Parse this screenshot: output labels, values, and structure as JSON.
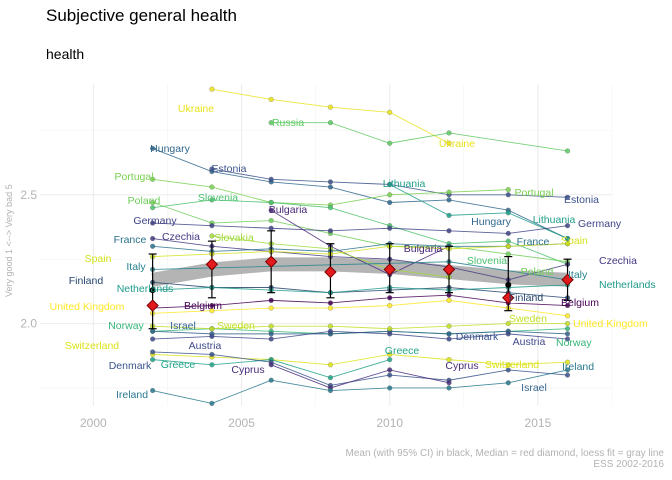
{
  "title": "Subjective general health",
  "subtitle": "health",
  "ylabel": "Very good 1 <--> Very bad 5",
  "caption_line1": "Mean (with 95% CI) in black, Median = red diamond, loess fit = gray line",
  "caption_line2": "ESS 2002-2016",
  "chart_data": {
    "type": "line",
    "title": "Subjective general health",
    "subtitle": "health",
    "xlabel": "",
    "ylabel": "Very good 1 <--> Very bad 5",
    "xlim": [
      1998.2,
      2017.5
    ],
    "ylim": [
      1.68,
      2.93
    ],
    "x_ticks": [
      2000,
      2005,
      2010,
      2015
    ],
    "y_ticks": [
      2.0,
      2.5
    ],
    "y_tick_labels": [
      "2.0",
      "2.5"
    ],
    "grid": true,
    "summary": {
      "years": [
        2002,
        2004,
        2006,
        2008,
        2010,
        2012,
        2014,
        2016
      ],
      "mean": [
        2.13,
        2.22,
        2.24,
        2.2,
        2.21,
        2.2,
        2.15,
        2.17
      ],
      "ci_low": [
        1.98,
        2.1,
        2.12,
        2.1,
        2.12,
        2.12,
        2.05,
        2.09
      ],
      "ci_high": [
        2.27,
        2.32,
        2.36,
        2.31,
        2.31,
        2.3,
        2.26,
        2.25
      ],
      "median": [
        2.07,
        2.23,
        2.24,
        2.2,
        2.21,
        2.21,
        2.1,
        2.17
      ],
      "loess": [
        2.17,
        2.21,
        2.23,
        2.23,
        2.22,
        2.2,
        2.18,
        2.17
      ]
    },
    "series": [
      {
        "name": "Ukraine",
        "color": "#e8e31b",
        "x": [
          2004,
          2006,
          2008,
          2010,
          2012
        ],
        "y": [
          2.91,
          2.87,
          2.84,
          2.82,
          2.7
        ]
      },
      {
        "name": "Russia",
        "color": "#5ec962",
        "x": [
          2006,
          2008,
          2010,
          2012,
          2016
        ],
        "y": [
          2.78,
          2.78,
          2.7,
          2.74,
          2.67
        ]
      },
      {
        "name": "Hungary",
        "color": "#31688e",
        "x": [
          2002,
          2004,
          2006,
          2008,
          2010,
          2012,
          2014,
          2016
        ],
        "y": [
          2.68,
          2.59,
          2.55,
          2.53,
          2.47,
          2.48,
          2.44,
          2.33
        ]
      },
      {
        "name": "Estonia",
        "color": "#3b528b",
        "x": [
          2004,
          2006,
          2008,
          2010,
          2012,
          2014,
          2016
        ],
        "y": [
          2.6,
          2.56,
          2.55,
          2.54,
          2.5,
          2.5,
          2.49
        ]
      },
      {
        "name": "Portugal",
        "color": "#7ad151",
        "x": [
          2002,
          2004,
          2006,
          2008,
          2010,
          2012,
          2014
        ],
        "y": [
          2.56,
          2.53,
          2.47,
          2.46,
          2.5,
          2.51,
          2.52
        ]
      },
      {
        "name": "Lithuania",
        "color": "#1f9e89",
        "x": [
          2010,
          2012,
          2014,
          2016
        ],
        "y": [
          2.54,
          2.42,
          2.43,
          2.33
        ]
      },
      {
        "name": "Slovenia",
        "color": "#4ac16d",
        "x": [
          2002,
          2004,
          2006,
          2008,
          2010,
          2012,
          2014,
          2016
        ],
        "y": [
          2.45,
          2.48,
          2.47,
          2.45,
          2.38,
          2.31,
          2.32,
          2.23
        ]
      },
      {
        "name": "Poland",
        "color": "#6ece58",
        "x": [
          2002,
          2004,
          2006,
          2008,
          2010,
          2012,
          2014,
          2016
        ],
        "y": [
          2.47,
          2.39,
          2.4,
          2.35,
          2.3,
          2.3,
          2.27,
          2.24
        ]
      },
      {
        "name": "Germany",
        "color": "#414487",
        "x": [
          2002,
          2004,
          2006,
          2008,
          2010,
          2012,
          2014,
          2016
        ],
        "y": [
          2.39,
          2.38,
          2.37,
          2.36,
          2.37,
          2.36,
          2.35,
          2.38
        ]
      },
      {
        "name": "Bulgaria",
        "color": "#482878",
        "x": [
          2006,
          2008,
          2010,
          2012
        ],
        "y": [
          2.44,
          2.3,
          2.19,
          2.3
        ]
      },
      {
        "name": "Czechia",
        "color": "#443983",
        "x": [
          2002,
          2004,
          2006,
          2008,
          2010,
          2012,
          2014,
          2016
        ],
        "y": [
          2.33,
          2.3,
          2.28,
          2.26,
          2.25,
          2.22,
          2.17,
          2.23
        ]
      },
      {
        "name": "Slovakia",
        "color": "#a0da39",
        "x": [
          2004,
          2006,
          2008,
          2010,
          2012
        ],
        "y": [
          2.34,
          2.31,
          2.29,
          2.21,
          2.18
        ]
      },
      {
        "name": "France",
        "color": "#2c728e",
        "x": [
          2002,
          2004,
          2006,
          2008,
          2010,
          2012,
          2014,
          2016
        ],
        "y": [
          2.3,
          2.28,
          2.29,
          2.28,
          2.31,
          2.3,
          2.3,
          2.31
        ]
      },
      {
        "name": "Spain",
        "color": "#d2e21b",
        "x": [
          2002,
          2004,
          2006,
          2008,
          2010,
          2012,
          2014,
          2016
        ],
        "y": [
          2.26,
          2.27,
          2.28,
          2.27,
          2.3,
          2.29,
          2.3,
          2.31
        ]
      },
      {
        "name": "Italy",
        "color": "#25848e",
        "x": [
          2002,
          2012,
          2016
        ],
        "y": [
          2.21,
          2.24,
          2.17
        ]
      },
      {
        "name": "Finland",
        "color": "#26456e",
        "x": [
          2002,
          2004,
          2006,
          2008,
          2010,
          2012,
          2014,
          2016
        ],
        "y": [
          2.16,
          2.14,
          2.14,
          2.12,
          2.13,
          2.14,
          2.12,
          2.1
        ]
      },
      {
        "name": "Netherlands",
        "color": "#1e9b8a",
        "x": [
          2002,
          2004,
          2006,
          2008,
          2010,
          2012,
          2014,
          2016
        ],
        "y": [
          2.13,
          2.14,
          2.13,
          2.12,
          2.14,
          2.13,
          2.14,
          2.15
        ]
      },
      {
        "name": "Belgium",
        "color": "#440154",
        "x": [
          2002,
          2004,
          2006,
          2008,
          2010,
          2012,
          2014,
          2016
        ],
        "y": [
          2.06,
          2.07,
          2.09,
          2.08,
          2.1,
          2.11,
          2.08,
          2.07
        ]
      },
      {
        "name": "United Kingdom",
        "color": "#fde725",
        "x": [
          2002,
          2004,
          2006,
          2008,
          2010,
          2012,
          2014,
          2016
        ],
        "y": [
          2.04,
          2.05,
          2.06,
          2.06,
          2.07,
          2.09,
          2.06,
          2.03
        ]
      },
      {
        "name": "Norway",
        "color": "#35b779",
        "x": [
          2002,
          2004,
          2006,
          2008,
          2010,
          2012,
          2014,
          2016
        ],
        "y": [
          1.97,
          1.98,
          1.97,
          1.96,
          1.97,
          1.96,
          1.97,
          1.98
        ]
      },
      {
        "name": "Israel",
        "color": "#33638d",
        "x": [
          2002,
          2004,
          2006,
          2008,
          2010,
          2012,
          2014,
          2016
        ],
        "y": [
          1.97,
          1.96,
          1.96,
          1.96,
          1.97,
          1.96,
          1.97,
          1.96
        ]
      },
      {
        "name": "Sweden",
        "color": "#c2df23",
        "x": [
          2002,
          2004,
          2006,
          2008,
          2010,
          2012,
          2014,
          2016
        ],
        "y": [
          1.99,
          1.98,
          1.99,
          1.99,
          1.98,
          1.99,
          2.0,
          2.0
        ]
      },
      {
        "name": "Austria",
        "color": "#3e4989",
        "x": [
          2002,
          2004,
          2006,
          2008,
          2010,
          2012,
          2014,
          2016
        ],
        "y": [
          1.94,
          1.95,
          1.94,
          1.97,
          1.96,
          1.94,
          1.96,
          1.94
        ]
      },
      {
        "name": "Switzerland",
        "color": "#dde318",
        "x": [
          2002,
          2004,
          2006,
          2008,
          2010,
          2012,
          2014,
          2016
        ],
        "y": [
          1.88,
          1.87,
          1.86,
          1.84,
          1.88,
          1.86,
          1.84,
          1.85
        ]
      },
      {
        "name": "Greece",
        "color": "#20a386",
        "x": [
          2002,
          2004,
          2006,
          2008,
          2010
        ],
        "y": [
          1.86,
          1.84,
          1.86,
          1.79,
          1.86
        ]
      },
      {
        "name": "Denmark",
        "color": "#3a548c",
        "x": [
          2002,
          2004,
          2006,
          2008,
          2010,
          2012,
          2014,
          2016
        ],
        "y": [
          1.89,
          1.88,
          1.85,
          1.76,
          1.8,
          1.78,
          1.82,
          1.8
        ]
      },
      {
        "name": "Cyprus",
        "color": "#472d7b",
        "x": [
          2006,
          2008,
          2010,
          2012
        ],
        "y": [
          1.84,
          1.75,
          1.82,
          1.77
        ]
      },
      {
        "name": "Ireland",
        "color": "#29798e",
        "x": [
          2002,
          2004,
          2006,
          2008,
          2010,
          2012,
          2014,
          2016
        ],
        "y": [
          1.74,
          1.69,
          1.78,
          1.74,
          1.75,
          1.75,
          1.77,
          1.82
        ]
      }
    ]
  }
}
